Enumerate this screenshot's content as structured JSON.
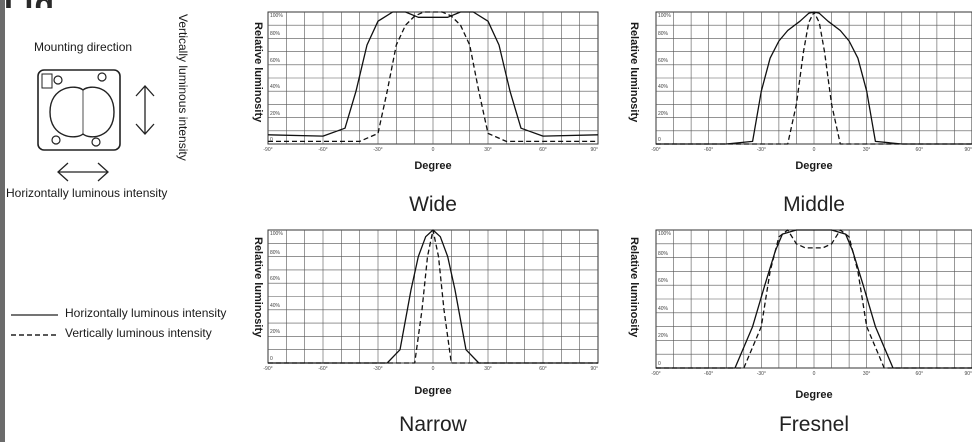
{
  "page": {
    "partial_heading": "Lig",
    "mounting_direction": "Mounting direction",
    "vertical_label": "Vertically luminous intensity",
    "horizontal_label": "Horizontally luminous intensity",
    "legend": [
      {
        "label": "Horizontally luminous intensity",
        "style": "solid"
      },
      {
        "label": "Vertically luminous intensity",
        "style": "dashed"
      }
    ]
  },
  "chart_data": [
    {
      "type": "line",
      "title": "Wide",
      "xlabel": "Degree",
      "ylabel": "Relative luminosity",
      "xlim": [
        -90,
        90
      ],
      "ylim": [
        0,
        100
      ],
      "yticks": [
        "100%",
        "80%",
        "60%",
        "40%",
        "20%",
        "0"
      ],
      "xticks": [
        "-90°",
        "-60°",
        "-30°",
        "0",
        "30°",
        "60°",
        "90°"
      ],
      "series": [
        {
          "style": "solid",
          "x": [
            -90,
            -60,
            -48,
            -42,
            -36,
            -30,
            -22,
            -15,
            -8,
            0,
            8,
            15,
            22,
            30,
            36,
            42,
            48,
            60,
            90
          ],
          "y": [
            7,
            6,
            12,
            40,
            75,
            93,
            100,
            100,
            96,
            96,
            96,
            100,
            100,
            93,
            75,
            40,
            12,
            6,
            7
          ]
        },
        {
          "style": "dashed",
          "x": [
            -90,
            -40,
            -30,
            -25,
            -20,
            -15,
            -10,
            -5,
            0,
            5,
            10,
            15,
            20,
            25,
            30,
            40,
            90
          ],
          "y": [
            2,
            2,
            8,
            40,
            75,
            90,
            97,
            100,
            100,
            100,
            97,
            90,
            75,
            40,
            8,
            2,
            2
          ]
        }
      ]
    },
    {
      "type": "line",
      "title": "Middle",
      "xlabel": "Degree",
      "ylabel": "Relative luminosity",
      "xlim": [
        -90,
        90
      ],
      "ylim": [
        0,
        100
      ],
      "yticks": [
        "100%",
        "80%",
        "60%",
        "40%",
        "20%",
        "0"
      ],
      "xticks": [
        "-90°",
        "-60°",
        "-30°",
        "0",
        "30°",
        "60°",
        "90°"
      ],
      "series": [
        {
          "style": "solid",
          "x": [
            -90,
            -50,
            -35,
            -30,
            -25,
            -20,
            -15,
            -8,
            -3,
            0,
            3,
            8,
            15,
            20,
            25,
            30,
            35,
            50,
            90
          ],
          "y": [
            0,
            0,
            2,
            40,
            65,
            78,
            86,
            93,
            99,
            100,
            99,
            93,
            86,
            78,
            65,
            40,
            2,
            0,
            0
          ]
        },
        {
          "style": "dashed",
          "x": [
            -90,
            -15,
            -10,
            -6,
            -3,
            0,
            3,
            6,
            10,
            15,
            90
          ],
          "y": [
            0,
            0,
            30,
            70,
            92,
            100,
            92,
            70,
            30,
            0,
            0
          ]
        }
      ]
    },
    {
      "type": "line",
      "title": "Narrow",
      "xlabel": "Degree",
      "ylabel": "Relative luminosity",
      "xlim": [
        -90,
        90
      ],
      "ylim": [
        0,
        100
      ],
      "yticks": [
        "100%",
        "80%",
        "60%",
        "40%",
        "20%",
        "0"
      ],
      "xticks": [
        "-90°",
        "-60°",
        "-30°",
        "0",
        "30°",
        "60°",
        "90°"
      ],
      "series": [
        {
          "style": "solid",
          "x": [
            -90,
            -25,
            -18,
            -12,
            -8,
            -4,
            0,
            4,
            8,
            12,
            18,
            25,
            90
          ],
          "y": [
            0,
            0,
            10,
            55,
            80,
            95,
            100,
            95,
            80,
            55,
            10,
            0,
            0
          ]
        },
        {
          "style": "dashed",
          "x": [
            -90,
            -10,
            -6,
            -3,
            0,
            3,
            6,
            10,
            90
          ],
          "y": [
            0,
            0,
            40,
            80,
            100,
            80,
            40,
            0,
            0
          ]
        }
      ]
    },
    {
      "type": "line",
      "title": "Fresnel",
      "xlabel": "Degree",
      "ylabel": "Relative luminosity",
      "xlim": [
        -90,
        90
      ],
      "ylim": [
        0,
        100
      ],
      "yticks": [
        "100%",
        "80%",
        "60%",
        "40%",
        "20%",
        "0"
      ],
      "xticks": [
        "-90°",
        "-60°",
        "-30°",
        "0",
        "30°",
        "60°",
        "90°"
      ],
      "series": [
        {
          "style": "solid",
          "x": [
            -90,
            -45,
            -35,
            -28,
            -22,
            -18,
            -10,
            0,
            10,
            18,
            22,
            28,
            35,
            45,
            90
          ],
          "y": [
            0,
            0,
            30,
            60,
            85,
            97,
            100,
            100,
            100,
            97,
            85,
            60,
            30,
            0,
            0
          ]
        },
        {
          "style": "dashed",
          "x": [
            -90,
            -40,
            -30,
            -25,
            -20,
            -15,
            -10,
            -5,
            0,
            5,
            10,
            15,
            20,
            25,
            30,
            40,
            90
          ],
          "y": [
            0,
            0,
            30,
            70,
            95,
            100,
            90,
            87,
            87,
            87,
            90,
            100,
            95,
            70,
            30,
            0,
            0
          ]
        }
      ]
    }
  ]
}
